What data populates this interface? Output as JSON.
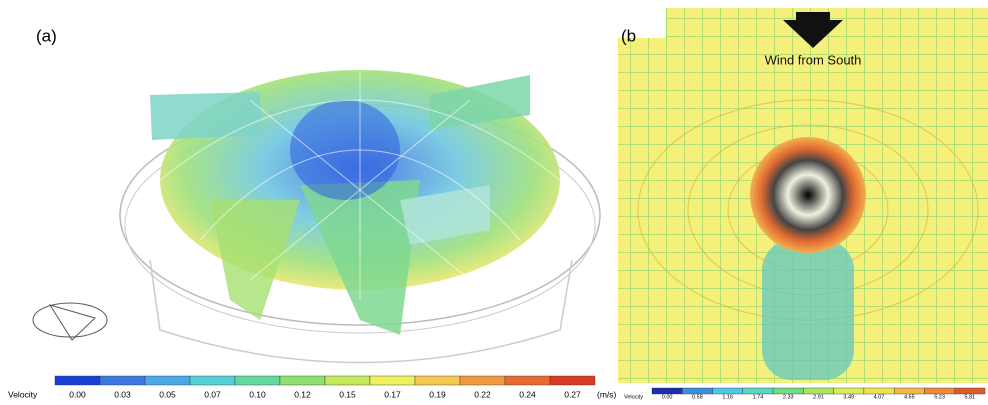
{
  "panels": [
    {
      "label": "(a)",
      "colorbar": {
        "title": "Velocity",
        "ticks": [
          "0.00",
          "0.03",
          "0.05",
          "0.07",
          "0.10",
          "0.12",
          "0.15",
          "0.17",
          "0.19",
          "0.22",
          "0.24",
          "0.27"
        ],
        "unit": "(m/s)",
        "colors": [
          "#1a3fd6",
          "#3b78e0",
          "#4aa8e6",
          "#55d0d8",
          "#62d9a0",
          "#8fe070",
          "#c4ea5c",
          "#eef060",
          "#f5c850",
          "#f09a40",
          "#e86a30",
          "#d93a22"
        ]
      }
    },
    {
      "label": "(b",
      "annotation": "Wind from South",
      "colorbar": {
        "title": "Velocity",
        "ticks": [
          "0.00",
          "0.58",
          "1.16",
          "1.74",
          "2.33",
          "2.91",
          "3.49",
          "4.07",
          "4.65",
          "5.23",
          "5.81"
        ],
        "colors": [
          "#1a2fb0",
          "#3a8fe0",
          "#4cc8e8",
          "#58d8c0",
          "#70dc80",
          "#a8e460",
          "#dcec58",
          "#f2e04c",
          "#f4b844",
          "#ee8a38",
          "#e05a28"
        ]
      }
    }
  ]
}
